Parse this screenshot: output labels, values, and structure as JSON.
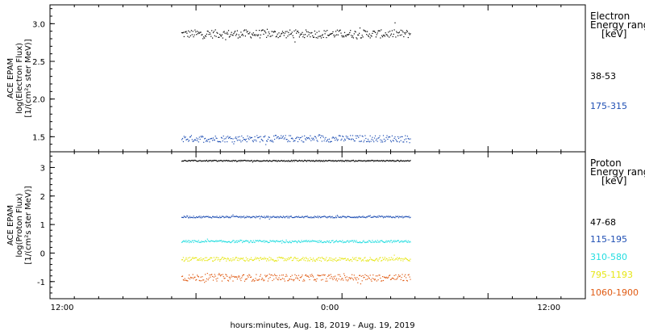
{
  "xlabel": "hours:minutes, Aug. 18, 2019 - Aug. 19, 2019",
  "x_ticks": [
    "12:00",
    "0:00",
    "12:00"
  ],
  "chart_data": [
    {
      "type": "scatter",
      "ylabel_lines": [
        "ACE EPAM",
        "log(Electron Flux)",
        "[1/(cm²s ster MeV)]"
      ],
      "legend_title": [
        "Electron",
        "Energy ranges",
        "[keV]"
      ],
      "yticks": [
        "1.5",
        "2.0",
        "2.5",
        "3.0"
      ],
      "ylim": [
        1.3,
        3.25
      ],
      "x_hours": [
        0,
        44
      ],
      "data_x_range": [
        10.8,
        29.6
      ],
      "series": [
        {
          "name": "38-53",
          "color": "#000000",
          "level": 2.87,
          "spread": 0.055
        },
        {
          "name": "175-315",
          "color": "#1f4fb4",
          "level": 1.48,
          "spread": 0.045
        }
      ]
    },
    {
      "type": "scatter",
      "ylabel_lines": [
        "ACE EPAM",
        "log(Proton Flux)",
        "[1/(cm²s ster MeV)]"
      ],
      "legend_title": [
        "Proton",
        "Energy ranges",
        "[keV]"
      ],
      "yticks": [
        "-1",
        "0",
        "1",
        "2",
        "3"
      ],
      "ylim": [
        -1.6,
        3.55
      ],
      "x_hours": [
        0,
        44
      ],
      "data_x_range": [
        10.8,
        29.6
      ],
      "series": [
        {
          "name": "47-68",
          "color": "#000000",
          "level": 3.25,
          "spread": 0.02
        },
        {
          "name": "115-195",
          "color": "#1f4fb4",
          "level": 1.28,
          "spread": 0.03
        },
        {
          "name": "310-580",
          "color": "#22dde0",
          "level": 0.42,
          "spread": 0.04
        },
        {
          "name": "795-1193",
          "color": "#e6e614",
          "level": -0.2,
          "spread": 0.07
        },
        {
          "name": "1060-1900",
          "color": "#e05a12",
          "level": -0.85,
          "spread": 0.12
        }
      ]
    }
  ]
}
